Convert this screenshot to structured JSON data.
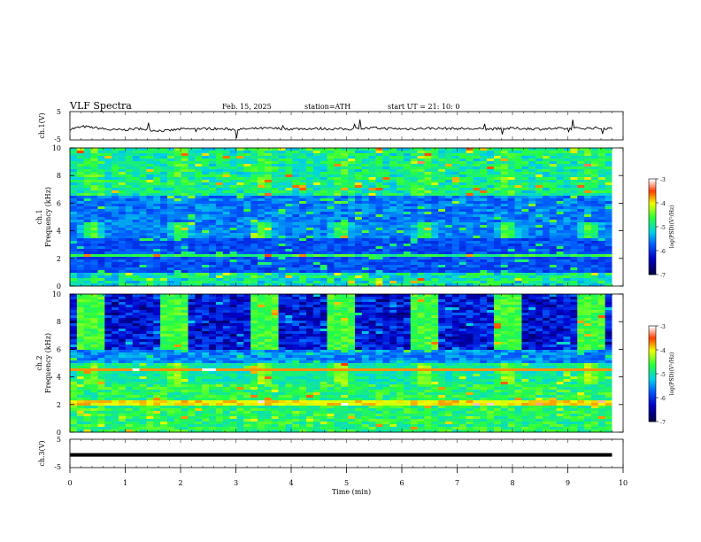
{
  "header": {
    "title": "VLF  Spectra",
    "date": "Feb. 15, 2025",
    "station": "station=ATH",
    "start": "start  UT  =    21: 10: 0"
  },
  "chart_data": [
    {
      "type": "line",
      "id": "ch1-voltage",
      "ylabel": "ch.1(V)",
      "ylim": [
        -5,
        5
      ],
      "yticks": [
        "5",
        "-5"
      ],
      "xlim": [
        0,
        10
      ],
      "series": [
        {
          "x": [
            0,
            0.25,
            0.5,
            0.75,
            1,
            1.25,
            1.5,
            1.75,
            2,
            2.5,
            3,
            3.5,
            4,
            4.5,
            5,
            5.5,
            6,
            6.5,
            7,
            7.5,
            8,
            8.5,
            9,
            9.5,
            9.8
          ],
          "values": [
            -1.2,
            -0.3,
            -0.8,
            -1.5,
            -1.4,
            -1.0,
            -1.6,
            -1.8,
            -1.2,
            -1.0,
            -1.3,
            -0.9,
            -1.1,
            -1.0,
            -1.2,
            -0.8,
            -1.1,
            -0.9,
            -1.0,
            -1.2,
            -0.9,
            -1.1,
            -1.0,
            -0.8,
            -1.0
          ]
        }
      ]
    },
    {
      "type": "heatmap",
      "id": "ch1-spectrogram",
      "ylabel": "ch.1\nFrequency  (kHz)",
      "ylim": [
        0,
        10
      ],
      "yticks": [
        "0",
        "2",
        "4",
        "6",
        "8",
        "10"
      ],
      "xlim": [
        0,
        9.8
      ],
      "colorbar": {
        "label": "log(PSD)(V²/Hz)",
        "ticks": [
          "-3",
          "-4",
          "-5",
          "-6",
          "-7"
        ],
        "range": [
          -7,
          -3
        ]
      },
      "bursts": [
        0.4,
        2.0,
        3.5,
        4.9,
        6.4,
        7.9,
        9.4
      ]
    },
    {
      "type": "heatmap",
      "id": "ch2-spectrogram",
      "ylabel": "ch.2\nFrequency  (kHz)",
      "ylim": [
        0,
        10
      ],
      "yticks": [
        "0",
        "2",
        "4",
        "6",
        "8",
        "10"
      ],
      "xlim": [
        0,
        9.8
      ],
      "colorbar": {
        "label": "log(PSD)(V²/Hz)",
        "ticks": [
          "-3",
          "-4",
          "-5",
          "-6",
          "-7"
        ],
        "range": [
          -7,
          -3
        ]
      },
      "bursts": [
        0.4,
        1.9,
        3.5,
        4.9,
        6.4,
        7.9,
        9.4
      ]
    },
    {
      "type": "line",
      "id": "ch3-voltage",
      "ylabel": "ch.3(V)",
      "ylim": [
        -5,
        5
      ],
      "yticks": [
        "5",
        "-5"
      ],
      "xlim": [
        0,
        10
      ],
      "series": [
        {
          "x": [
            0,
            9.8
          ],
          "values": [
            -0.5,
            -0.5
          ]
        }
      ]
    }
  ],
  "xaxis": {
    "label": "Time  (min)",
    "ticks": [
      "0",
      "1",
      "2",
      "3",
      "4",
      "5",
      "6",
      "7",
      "8",
      "9",
      "10"
    ]
  },
  "colors": {
    "bg_dark": "#00005a",
    "blue": "#0040ff",
    "cyan": "#00e0e0",
    "green": "#20ff40",
    "yellow": "#f0ff00",
    "red": "#ff3000",
    "line": "#000000"
  }
}
